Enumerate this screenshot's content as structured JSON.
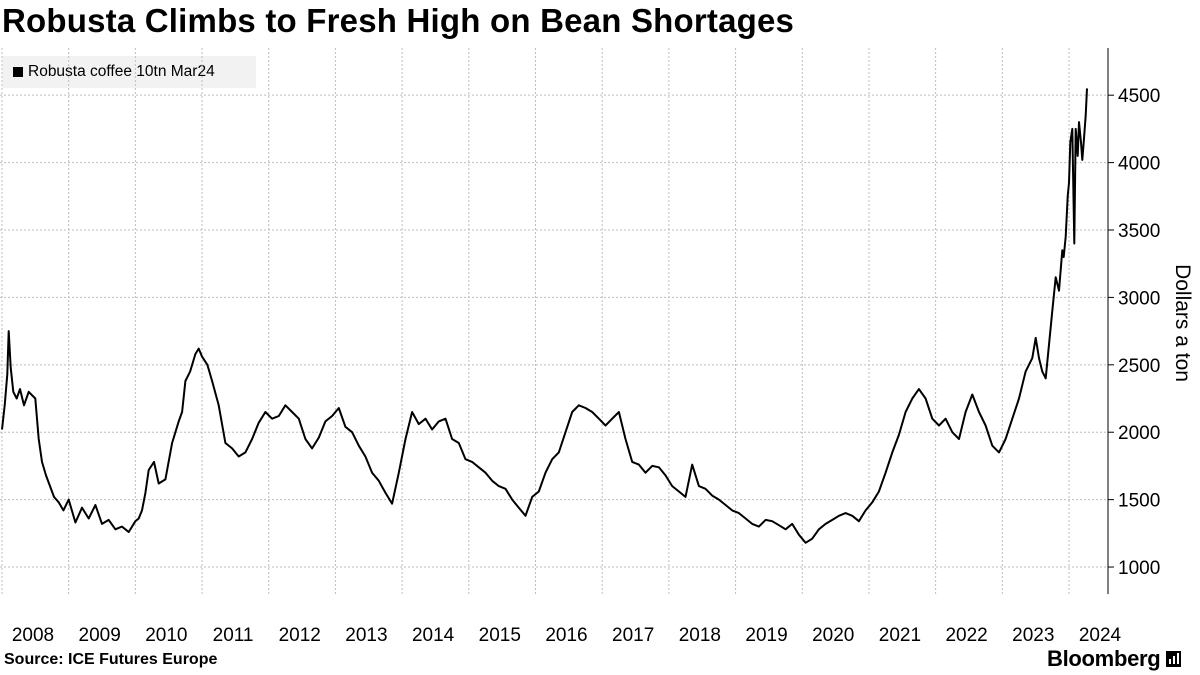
{
  "header": {
    "title": "Robusta Climbs to Fresh High on Bean Shortages"
  },
  "footer": {
    "source": "Source: ICE Futures Europe",
    "brand": "Bloomberg"
  },
  "colors": {
    "line": "#000000",
    "grid": "#bdbdbd",
    "legend_bg": "#f2f2f2"
  },
  "chart_data": {
    "type": "line",
    "title": "Robusta Climbs to Fresh High on Bean Shortages",
    "xlabel": "",
    "ylabel": "Dollars a ton",
    "ylim": [
      800,
      4850
    ],
    "xlim": [
      2008.0,
      2024.27
    ],
    "yticks": [
      1000,
      1500,
      2000,
      2500,
      3000,
      3500,
      4000,
      4500
    ],
    "xticks": [
      2008,
      2009,
      2010,
      2011,
      2012,
      2013,
      2014,
      2015,
      2016,
      2017,
      2018,
      2019,
      2020,
      2021,
      2022,
      2023,
      2024
    ],
    "ytick_labels": [
      "1000",
      "1500",
      "2000",
      "2500",
      "3000",
      "3500",
      "4000",
      "4500"
    ],
    "xtick_labels": [
      "2008",
      "2009",
      "2010",
      "2011",
      "2012",
      "2013",
      "2014",
      "2015",
      "2016",
      "2017",
      "2018",
      "2019",
      "2020",
      "2021",
      "2022",
      "2023",
      "2024"
    ],
    "grid": true,
    "legend": "top-left",
    "series": [
      {
        "name": "Robusta coffee 10tn Mar24",
        "x": [
          2008.0,
          2008.04,
          2008.08,
          2008.1,
          2008.13,
          2008.17,
          2008.22,
          2008.27,
          2008.33,
          2008.4,
          2008.5,
          2008.55,
          2008.6,
          2008.66,
          2008.72,
          2008.78,
          2008.85,
          2008.92,
          2009.0,
          2009.1,
          2009.2,
          2009.3,
          2009.4,
          2009.5,
          2009.6,
          2009.7,
          2009.8,
          2009.9,
          2010.0,
          2010.05,
          2010.1,
          2010.15,
          2010.2,
          2010.28,
          2010.35,
          2010.45,
          2010.55,
          2010.65,
          2010.7,
          2010.75,
          2010.82,
          2010.9,
          2010.95,
          2011.0,
          2011.08,
          2011.15,
          2011.25,
          2011.35,
          2011.45,
          2011.55,
          2011.65,
          2011.75,
          2011.85,
          2011.95,
          2012.05,
          2012.15,
          2012.25,
          2012.35,
          2012.45,
          2012.55,
          2012.65,
          2012.75,
          2012.85,
          2012.95,
          2013.05,
          2013.15,
          2013.25,
          2013.35,
          2013.45,
          2013.55,
          2013.65,
          2013.75,
          2013.85,
          2013.95,
          2014.05,
          2014.15,
          2014.25,
          2014.35,
          2014.45,
          2014.55,
          2014.65,
          2014.75,
          2014.85,
          2014.95,
          2015.05,
          2015.15,
          2015.25,
          2015.35,
          2015.45,
          2015.55,
          2015.65,
          2015.75,
          2015.85,
          2015.95,
          2016.05,
          2016.15,
          2016.25,
          2016.35,
          2016.45,
          2016.55,
          2016.65,
          2016.75,
          2016.85,
          2016.95,
          2017.05,
          2017.15,
          2017.25,
          2017.35,
          2017.45,
          2017.55,
          2017.65,
          2017.75,
          2017.85,
          2017.95,
          2018.05,
          2018.15,
          2018.25,
          2018.35,
          2018.45,
          2018.55,
          2018.65,
          2018.75,
          2018.85,
          2018.95,
          2019.05,
          2019.15,
          2019.25,
          2019.35,
          2019.45,
          2019.55,
          2019.65,
          2019.75,
          2019.85,
          2019.95,
          2020.05,
          2020.15,
          2020.25,
          2020.35,
          2020.45,
          2020.55,
          2020.65,
          2020.75,
          2020.85,
          2020.95,
          2021.05,
          2021.15,
          2021.25,
          2021.35,
          2021.45,
          2021.55,
          2021.65,
          2021.75,
          2021.85,
          2021.95,
          2022.05,
          2022.15,
          2022.25,
          2022.35,
          2022.45,
          2022.55,
          2022.65,
          2022.75,
          2022.85,
          2022.95,
          2023.05,
          2023.15,
          2023.25,
          2023.35,
          2023.45,
          2023.5,
          2023.55,
          2023.6,
          2023.65,
          2023.7,
          2023.75,
          2023.8,
          2023.85,
          2023.9,
          2023.92,
          2023.95,
          2023.98,
          2024.0,
          2024.02,
          2024.05,
          2024.08,
          2024.1,
          2024.13,
          2024.15,
          2024.18,
          2024.2,
          2024.22,
          2024.25,
          2024.27
        ],
        "values": [
          2020,
          2200,
          2430,
          2750,
          2480,
          2300,
          2250,
          2320,
          2200,
          2300,
          2250,
          1950,
          1780,
          1680,
          1600,
          1520,
          1480,
          1420,
          1500,
          1330,
          1440,
          1360,
          1460,
          1320,
          1350,
          1280,
          1300,
          1260,
          1340,
          1360,
          1420,
          1550,
          1720,
          1780,
          1620,
          1650,
          1920,
          2080,
          2150,
          2380,
          2450,
          2580,
          2620,
          2560,
          2500,
          2380,
          2200,
          1920,
          1880,
          1820,
          1850,
          1950,
          2070,
          2150,
          2100,
          2120,
          2200,
          2150,
          2100,
          1950,
          1880,
          1960,
          2080,
          2120,
          2180,
          2040,
          2000,
          1900,
          1820,
          1700,
          1640,
          1550,
          1470,
          1700,
          1950,
          2150,
          2060,
          2100,
          2020,
          2080,
          2100,
          1950,
          1920,
          1800,
          1780,
          1740,
          1700,
          1640,
          1600,
          1580,
          1500,
          1440,
          1380,
          1520,
          1560,
          1700,
          1800,
          1850,
          2000,
          2150,
          2200,
          2180,
          2150,
          2100,
          2050,
          2100,
          2150,
          1950,
          1780,
          1760,
          1700,
          1750,
          1740,
          1680,
          1600,
          1560,
          1520,
          1760,
          1600,
          1580,
          1530,
          1500,
          1460,
          1420,
          1400,
          1360,
          1320,
          1300,
          1350,
          1340,
          1310,
          1280,
          1320,
          1240,
          1180,
          1210,
          1280,
          1320,
          1350,
          1380,
          1400,
          1380,
          1340,
          1420,
          1480,
          1560,
          1700,
          1850,
          1980,
          2150,
          2250,
          2320,
          2250,
          2100,
          2050,
          2100,
          2000,
          1950,
          2150,
          2280,
          2150,
          2050,
          1900,
          1850,
          1950,
          2100,
          2250,
          2450,
          2550,
          2700,
          2550,
          2450,
          2400,
          2650,
          2900,
          3150,
          3050,
          3350,
          3300,
          3450,
          3750,
          3850,
          4150,
          4250,
          3400,
          4250,
          4050,
          4300,
          4150,
          4020,
          4150,
          4350,
          4550
        ]
      }
    ]
  }
}
